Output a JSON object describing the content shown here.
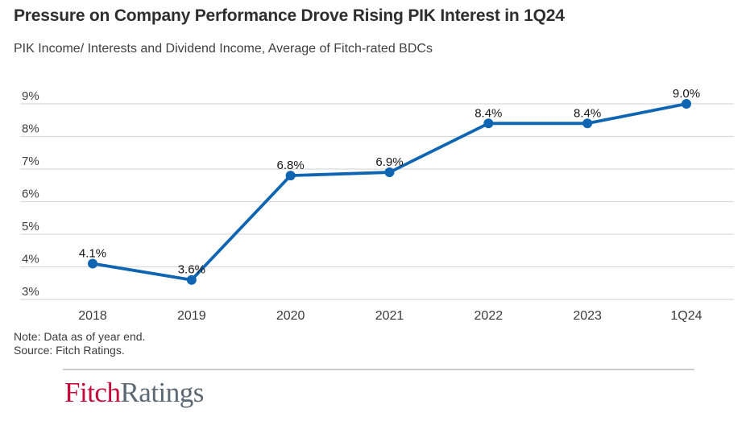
{
  "chart_data": {
    "type": "line",
    "title": "Pressure on Company Performance Drove Rising PIK Interest in 1Q24",
    "subtitle": "PIK Income/ Interests and Dividend Income, Average of Fitch-rated BDCs",
    "categories": [
      "2018",
      "2019",
      "2020",
      "2021",
      "2022",
      "2023",
      "1Q24"
    ],
    "values": [
      4.1,
      3.6,
      6.8,
      6.9,
      8.4,
      8.4,
      9.0
    ],
    "point_labels": [
      "4.1%",
      "3.6%",
      "6.8%",
      "6.9%",
      "8.4%",
      "8.4%",
      "9.0%"
    ],
    "y_ticks": [
      3,
      4,
      5,
      6,
      7,
      8,
      9
    ],
    "y_tick_labels": [
      "3%",
      "4%",
      "5%",
      "6%",
      "7%",
      "8%",
      "9%"
    ],
    "ylim": [
      3,
      9
    ],
    "xlabel": "",
    "ylabel": "",
    "grid": "horizontal",
    "legend": "none",
    "line_color": "#0f65b2",
    "marker_color": "#0f65b2"
  },
  "footer": {
    "note": "Note: Data as of year end.",
    "source": "Source: Fitch Ratings.",
    "logo": {
      "part1": "Fitch",
      "part2": "Ratings",
      "part1_color": "#c5093a",
      "part2_color": "#5c6873"
    }
  }
}
